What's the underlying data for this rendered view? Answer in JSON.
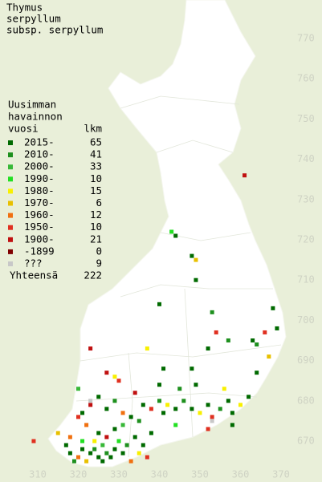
{
  "map": {
    "title": [
      "Thymus",
      "serpyllum",
      "subsp. serpyllum"
    ],
    "legend_title": [
      "Uusimman",
      "havainnon",
      "vuosi"
    ],
    "count_header": "lkm",
    "legend": [
      {
        "label": "2015-",
        "count": 65,
        "color": "#006a00"
      },
      {
        "label": "2010-",
        "count": 41,
        "color": "#1e901e"
      },
      {
        "label": "2000-",
        "count": 33,
        "color": "#38b838"
      },
      {
        "label": "1990-",
        "count": 10,
        "color": "#22e022"
      },
      {
        "label": "1980-",
        "count": 15,
        "color": "#f8f000"
      },
      {
        "label": "1970-",
        "count": 6,
        "color": "#e8c000"
      },
      {
        "label": "1960-",
        "count": 12,
        "color": "#f07010"
      },
      {
        "label": "1950-",
        "count": 10,
        "color": "#e03020"
      },
      {
        "label": "1900-",
        "count": 21,
        "color": "#c01010"
      },
      {
        "label": "-1899",
        "count": 0,
        "color": "#800000"
      },
      {
        "label": "???",
        "count": 9,
        "color": "#c8c8c8"
      }
    ],
    "total_label": "Yhteensä",
    "total": 222,
    "xlim": [
      310,
      370
    ],
    "ylim": [
      670,
      770
    ],
    "xticks": [
      310,
      320,
      330,
      340,
      350,
      360,
      370
    ],
    "yticks": [
      670,
      680,
      690,
      700,
      710,
      720,
      730,
      740,
      750,
      760,
      770
    ],
    "points": [
      {
        "x": 361,
        "y": 736,
        "k": 8
      },
      {
        "x": 343,
        "y": 722,
        "k": 3
      },
      {
        "x": 344,
        "y": 721,
        "k": 0
      },
      {
        "x": 349,
        "y": 715,
        "k": 5
      },
      {
        "x": 348,
        "y": 716,
        "k": 0
      },
      {
        "x": 349,
        "y": 710,
        "k": 0
      },
      {
        "x": 340,
        "y": 704,
        "k": 0
      },
      {
        "x": 353,
        "y": 702,
        "k": 1
      },
      {
        "x": 368,
        "y": 703,
        "k": 0
      },
      {
        "x": 369,
        "y": 698,
        "k": 0
      },
      {
        "x": 354,
        "y": 697,
        "k": 7
      },
      {
        "x": 366,
        "y": 697,
        "k": 7
      },
      {
        "x": 357,
        "y": 695,
        "k": 1
      },
      {
        "x": 363,
        "y": 695,
        "k": 0
      },
      {
        "x": 364,
        "y": 694,
        "k": 1
      },
      {
        "x": 323,
        "y": 693,
        "k": 8
      },
      {
        "x": 337,
        "y": 693,
        "k": 4
      },
      {
        "x": 352,
        "y": 693,
        "k": 0
      },
      {
        "x": 367,
        "y": 691,
        "k": 5
      },
      {
        "x": 327,
        "y": 687,
        "k": 8
      },
      {
        "x": 329,
        "y": 686,
        "k": 4
      },
      {
        "x": 364,
        "y": 687,
        "k": 0
      },
      {
        "x": 341,
        "y": 688,
        "k": 0
      },
      {
        "x": 348,
        "y": 688,
        "k": 0
      },
      {
        "x": 309,
        "y": 670,
        "k": 7
      },
      {
        "x": 318,
        "y": 667,
        "k": 0
      },
      {
        "x": 319,
        "y": 665,
        "k": 1
      },
      {
        "x": 320,
        "y": 666,
        "k": 6
      },
      {
        "x": 321,
        "y": 668,
        "k": 0
      },
      {
        "x": 322,
        "y": 665,
        "k": 5
      },
      {
        "x": 321,
        "y": 670,
        "k": 3
      },
      {
        "x": 323,
        "y": 667,
        "k": 0
      },
      {
        "x": 324,
        "y": 668,
        "k": 1
      },
      {
        "x": 325,
        "y": 666,
        "k": 0
      },
      {
        "x": 326,
        "y": 665,
        "k": 0
      },
      {
        "x": 324,
        "y": 670,
        "k": 4
      },
      {
        "x": 325,
        "y": 672,
        "k": 0
      },
      {
        "x": 326,
        "y": 669,
        "k": 2
      },
      {
        "x": 327,
        "y": 667,
        "k": 1
      },
      {
        "x": 328,
        "y": 666,
        "k": 0
      },
      {
        "x": 329,
        "y": 668,
        "k": 0
      },
      {
        "x": 330,
        "y": 670,
        "k": 3
      },
      {
        "x": 331,
        "y": 667,
        "k": 0
      },
      {
        "x": 332,
        "y": 669,
        "k": 1
      },
      {
        "x": 333,
        "y": 665,
        "k": 6
      },
      {
        "x": 334,
        "y": 671,
        "k": 0
      },
      {
        "x": 335,
        "y": 667,
        "k": 4
      },
      {
        "x": 336,
        "y": 669,
        "k": 0
      },
      {
        "x": 337,
        "y": 666,
        "k": 7
      },
      {
        "x": 338,
        "y": 672,
        "k": 0
      },
      {
        "x": 329,
        "y": 673,
        "k": 0
      },
      {
        "x": 331,
        "y": 674,
        "k": 2
      },
      {
        "x": 333,
        "y": 676,
        "k": 0
      },
      {
        "x": 335,
        "y": 675,
        "k": 1
      },
      {
        "x": 322,
        "y": 674,
        "k": 6
      },
      {
        "x": 320,
        "y": 676,
        "k": 7
      },
      {
        "x": 321,
        "y": 677,
        "k": 0
      },
      {
        "x": 323,
        "y": 679,
        "k": 8
      },
      {
        "x": 327,
        "y": 678,
        "k": 0
      },
      {
        "x": 329,
        "y": 680,
        "k": 1
      },
      {
        "x": 331,
        "y": 677,
        "k": 6
      },
      {
        "x": 336,
        "y": 679,
        "k": 0
      },
      {
        "x": 338,
        "y": 678,
        "k": 7
      },
      {
        "x": 340,
        "y": 680,
        "k": 1
      },
      {
        "x": 341,
        "y": 677,
        "k": 0
      },
      {
        "x": 342,
        "y": 679,
        "k": 4
      },
      {
        "x": 344,
        "y": 678,
        "k": 0
      },
      {
        "x": 346,
        "y": 680,
        "k": 1
      },
      {
        "x": 348,
        "y": 678,
        "k": 0
      },
      {
        "x": 350,
        "y": 677,
        "k": 4
      },
      {
        "x": 352,
        "y": 679,
        "k": 0
      },
      {
        "x": 353,
        "y": 676,
        "k": 7
      },
      {
        "x": 355,
        "y": 678,
        "k": 1
      },
      {
        "x": 357,
        "y": 680,
        "k": 0
      },
      {
        "x": 358,
        "y": 677,
        "k": 0
      },
      {
        "x": 360,
        "y": 679,
        "k": 4
      },
      {
        "x": 362,
        "y": 681,
        "k": 0
      },
      {
        "x": 356,
        "y": 683,
        "k": 4
      },
      {
        "x": 349,
        "y": 684,
        "k": 0
      },
      {
        "x": 345,
        "y": 683,
        "k": 1
      },
      {
        "x": 340,
        "y": 684,
        "k": 0
      },
      {
        "x": 334,
        "y": 682,
        "k": 8
      },
      {
        "x": 330,
        "y": 685,
        "k": 7
      },
      {
        "x": 325,
        "y": 681,
        "k": 0
      },
      {
        "x": 320,
        "y": 683,
        "k": 2
      },
      {
        "x": 317,
        "y": 669,
        "k": 0
      },
      {
        "x": 315,
        "y": 672,
        "k": 5
      },
      {
        "x": 318,
        "y": 671,
        "k": 6
      },
      {
        "x": 327,
        "y": 671,
        "k": 8
      },
      {
        "x": 344,
        "y": 674,
        "k": 3
      },
      {
        "x": 352,
        "y": 673,
        "k": 7
      },
      {
        "x": 358,
        "y": 674,
        "k": 0
      },
      {
        "x": 323,
        "y": 680,
        "k": 10
      },
      {
        "x": 353,
        "y": 675,
        "k": 10
      }
    ]
  }
}
